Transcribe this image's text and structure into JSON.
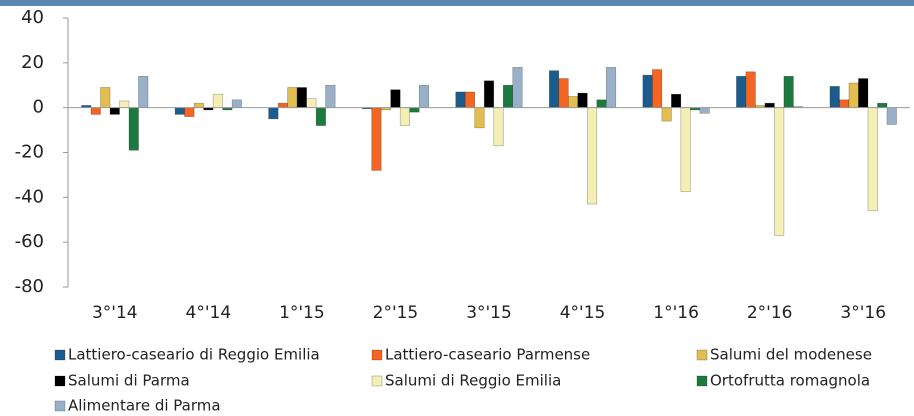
{
  "chart_data": {
    "type": "bar",
    "categories": [
      "3°'14",
      "4°'14",
      "1°'15",
      "2°'15",
      "3°'15",
      "4°'15",
      "1°'16",
      "2°'16",
      "3°'16"
    ],
    "series": [
      {
        "name": "Lattiero-caseario di Reggio Emilia",
        "color": "#1c5c8c",
        "values": [
          1,
          -3,
          -5,
          -0.5,
          7,
          16.5,
          14.5,
          14,
          9.5
        ]
      },
      {
        "name": "Lattiero-caseario Parmense",
        "color": "#f26522",
        "values": [
          -3,
          -4,
          2,
          -28,
          7,
          13,
          17,
          16,
          3.5
        ]
      },
      {
        "name": "Salumi del modenese",
        "color": "#e2bd4f",
        "values": [
          9,
          2,
          9,
          -1,
          -9,
          5,
          -6,
          1,
          11
        ]
      },
      {
        "name": "Salumi di Parma",
        "color": "#000000",
        "values": [
          -3,
          -1,
          9,
          8,
          12,
          6.5,
          6,
          2,
          13
        ]
      },
      {
        "name": "Salumi di Reggio Emilia",
        "color": "#f4efb4",
        "values": [
          3,
          6,
          4,
          -8,
          -17,
          -43,
          -37.5,
          -57,
          -46
        ]
      },
      {
        "name": "Ortofrutta romagnola",
        "color": "#1d7a3e",
        "values": [
          -19,
          -1,
          -8,
          -2,
          10,
          3.5,
          -1,
          14,
          2
        ]
      },
      {
        "name": "Alimentare di Parma",
        "color": "#98b1c9",
        "values": [
          14,
          3.5,
          10,
          10,
          18,
          18,
          -2.5,
          0.5,
          -7.5
        ]
      }
    ],
    "ylim": [
      -80,
      40
    ],
    "yticks": [
      -80,
      -60,
      -40,
      -20,
      0,
      20,
      40
    ],
    "grid": false,
    "legend": "bottom"
  }
}
